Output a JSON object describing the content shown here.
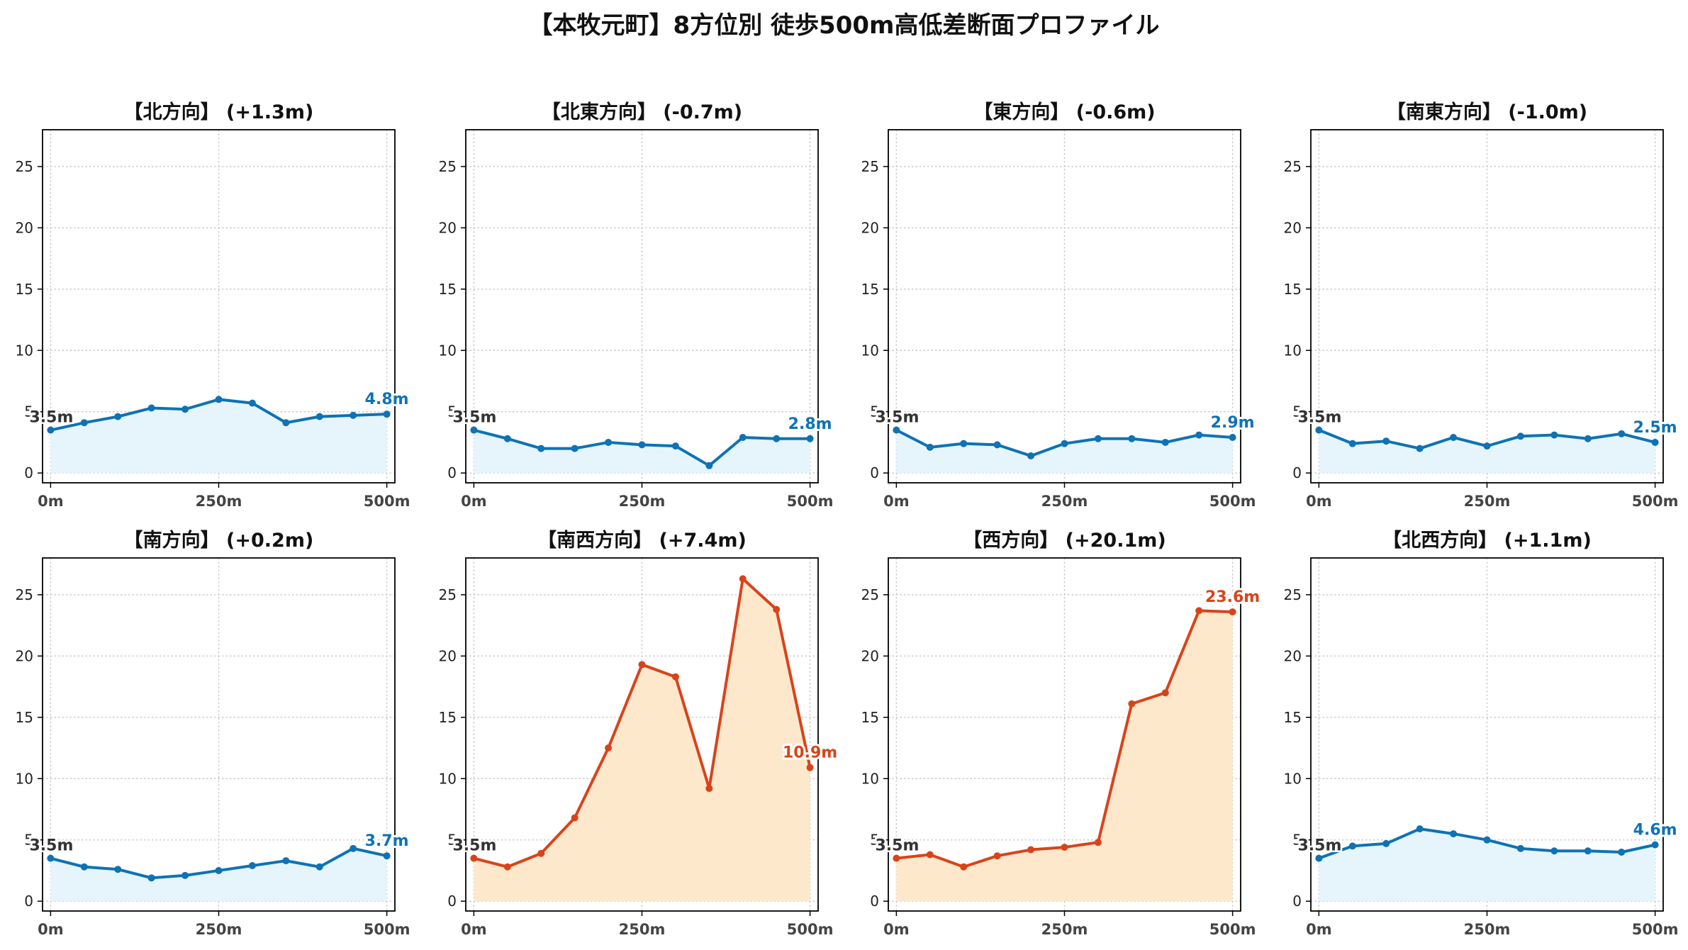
{
  "title": "【本牧元町】8方位別 徒歩500m高低差断面プロファイル",
  "colors": {
    "blue_line": "#0e72b5",
    "blue_fill": "#e6f5fc",
    "red_line": "#d9431a",
    "red_fill": "#fde8cc",
    "grid": "#c9c9c9",
    "start_label": "#333333"
  },
  "chart_data": [
    {
      "type": "area",
      "title": "【北方向】 (+1.3m)",
      "x": [
        0,
        50,
        100,
        150,
        200,
        250,
        300,
        350,
        400,
        450,
        500
      ],
      "xticks": [
        "0m",
        "250m",
        "500m"
      ],
      "ylim": [
        -0.8,
        28
      ],
      "yticks": [
        0,
        5,
        10,
        15,
        20,
        25
      ],
      "grid": true,
      "color_scheme": "blue",
      "values": [
        3.5,
        4.1,
        4.6,
        5.3,
        5.2,
        6.0,
        5.7,
        4.1,
        4.6,
        4.7,
        4.8
      ],
      "start_label": "3.5m",
      "end_label": "4.8m"
    },
    {
      "type": "area",
      "title": "【北東方向】 (-0.7m)",
      "x": [
        0,
        50,
        100,
        150,
        200,
        250,
        300,
        350,
        400,
        450,
        500
      ],
      "xticks": [
        "0m",
        "250m",
        "500m"
      ],
      "ylim": [
        -0.8,
        28
      ],
      "yticks": [
        0,
        5,
        10,
        15,
        20,
        25
      ],
      "grid": true,
      "color_scheme": "blue",
      "values": [
        3.5,
        2.8,
        2.0,
        2.0,
        2.5,
        2.3,
        2.2,
        0.6,
        2.9,
        2.8,
        2.8
      ],
      "start_label": "3.5m",
      "end_label": "2.8m"
    },
    {
      "type": "area",
      "title": "【東方向】 (-0.6m)",
      "x": [
        0,
        50,
        100,
        150,
        200,
        250,
        300,
        350,
        400,
        450,
        500
      ],
      "xticks": [
        "0m",
        "250m",
        "500m"
      ],
      "ylim": [
        -0.8,
        28
      ],
      "yticks": [
        0,
        5,
        10,
        15,
        20,
        25
      ],
      "grid": true,
      "color_scheme": "blue",
      "values": [
        3.5,
        2.1,
        2.4,
        2.3,
        1.4,
        2.4,
        2.8,
        2.8,
        2.5,
        3.1,
        2.9
      ],
      "start_label": "3.5m",
      "end_label": "2.9m"
    },
    {
      "type": "area",
      "title": "【南東方向】 (-1.0m)",
      "x": [
        0,
        50,
        100,
        150,
        200,
        250,
        300,
        350,
        400,
        450,
        500
      ],
      "xticks": [
        "0m",
        "250m",
        "500m"
      ],
      "ylim": [
        -0.8,
        28
      ],
      "yticks": [
        0,
        5,
        10,
        15,
        20,
        25
      ],
      "grid": true,
      "color_scheme": "blue",
      "values": [
        3.5,
        2.4,
        2.6,
        2.0,
        2.9,
        2.2,
        3.0,
        3.1,
        2.8,
        3.2,
        2.5
      ],
      "start_label": "3.5m",
      "end_label": "2.5m"
    },
    {
      "type": "area",
      "title": "【南方向】 (+0.2m)",
      "x": [
        0,
        50,
        100,
        150,
        200,
        250,
        300,
        350,
        400,
        450,
        500
      ],
      "xticks": [
        "0m",
        "250m",
        "500m"
      ],
      "ylim": [
        -0.8,
        28
      ],
      "yticks": [
        0,
        5,
        10,
        15,
        20,
        25
      ],
      "grid": true,
      "color_scheme": "blue",
      "values": [
        3.5,
        2.8,
        2.6,
        1.9,
        2.1,
        2.5,
        2.9,
        3.3,
        2.8,
        4.3,
        3.7
      ],
      "start_label": "3.5m",
      "end_label": "3.7m"
    },
    {
      "type": "area",
      "title": "【南西方向】 (+7.4m)",
      "x": [
        0,
        50,
        100,
        150,
        200,
        250,
        300,
        350,
        400,
        450,
        500
      ],
      "xticks": [
        "0m",
        "250m",
        "500m"
      ],
      "ylim": [
        -0.8,
        28
      ],
      "yticks": [
        0,
        5,
        10,
        15,
        20,
        25
      ],
      "grid": true,
      "color_scheme": "red",
      "values": [
        3.5,
        2.8,
        3.9,
        6.8,
        12.5,
        19.3,
        18.3,
        9.2,
        26.3,
        23.8,
        10.9
      ],
      "start_label": "3.5m",
      "end_label": "10.9m"
    },
    {
      "type": "area",
      "title": "【西方向】 (+20.1m)",
      "x": [
        0,
        50,
        100,
        150,
        200,
        250,
        300,
        350,
        400,
        450,
        500
      ],
      "xticks": [
        "0m",
        "250m",
        "500m"
      ],
      "ylim": [
        -0.8,
        28
      ],
      "yticks": [
        0,
        5,
        10,
        15,
        20,
        25
      ],
      "grid": true,
      "color_scheme": "red",
      "values": [
        3.5,
        3.8,
        2.8,
        3.7,
        4.2,
        4.4,
        4.8,
        16.1,
        17.0,
        23.7,
        23.6
      ],
      "start_label": "3.5m",
      "end_label": "23.6m"
    },
    {
      "type": "area",
      "title": "【北西方向】 (+1.1m)",
      "x": [
        0,
        50,
        100,
        150,
        200,
        250,
        300,
        350,
        400,
        450,
        500
      ],
      "xticks": [
        "0m",
        "250m",
        "500m"
      ],
      "ylim": [
        -0.8,
        28
      ],
      "yticks": [
        0,
        5,
        10,
        15,
        20,
        25
      ],
      "grid": true,
      "color_scheme": "blue",
      "values": [
        3.5,
        4.5,
        4.7,
        5.9,
        5.5,
        5.0,
        4.3,
        4.1,
        4.1,
        4.0,
        4.6
      ],
      "start_label": "3.5m",
      "end_label": "4.6m"
    }
  ]
}
